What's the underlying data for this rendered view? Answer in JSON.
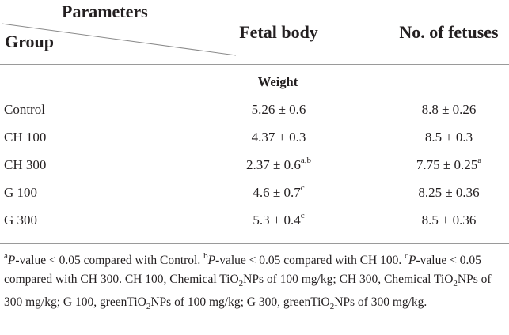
{
  "header": {
    "parameters": "Parameters",
    "group": "Group",
    "fetal_body": "Fetal body",
    "fetuses": "No. of fetuses"
  },
  "section": "Weight",
  "rows": [
    {
      "group": "Control",
      "fetal": "5.26 ± 0.6",
      "fetal_sup": "",
      "fetuses": "8.8 ± 0.26",
      "fetuses_sup": ""
    },
    {
      "group": "CH 100",
      "fetal": "4.37 ± 0.3",
      "fetal_sup": "",
      "fetuses": "8.5 ± 0.3",
      "fetuses_sup": ""
    },
    {
      "group": "CH 300",
      "fetal": "2.37 ± 0.6",
      "fetal_sup": "a,b",
      "fetuses": "7.75 ± 0.25",
      "fetuses_sup": "a"
    },
    {
      "group": "G 100",
      "fetal": "4.6 ± 0.7",
      "fetal_sup": "c",
      "fetuses": "8.25 ± 0.36",
      "fetuses_sup": ""
    },
    {
      "group": "G 300",
      "fetal": "5.3 ± 0.4",
      "fetal_sup": "c",
      "fetuses": "8.5 ± 0.36",
      "fetuses_sup": ""
    }
  ],
  "footnote": {
    "a_mark": "a",
    "a_p": "P",
    "a_text": "-value < 0.05 compared with Control.",
    "b_mark": "b",
    "b_p": "P",
    "b_text": "-value < 0.05 compared with CH 100.",
    "c_mark": "c",
    "c_p": "P",
    "c_text": "-value < 0.05 compared with CH 300. CH 100, Chemical TiO",
    "sub": "2",
    "t1": "NPs of 100 mg/kg; CH 300, Chemical TiO",
    "t2": "NPs of 300 mg/kg; G 100, greenTiO",
    "t3": "NPs of 100 mg/kg; G 300, greenTiO",
    "t4": "NPs of 300 mg/kg."
  }
}
